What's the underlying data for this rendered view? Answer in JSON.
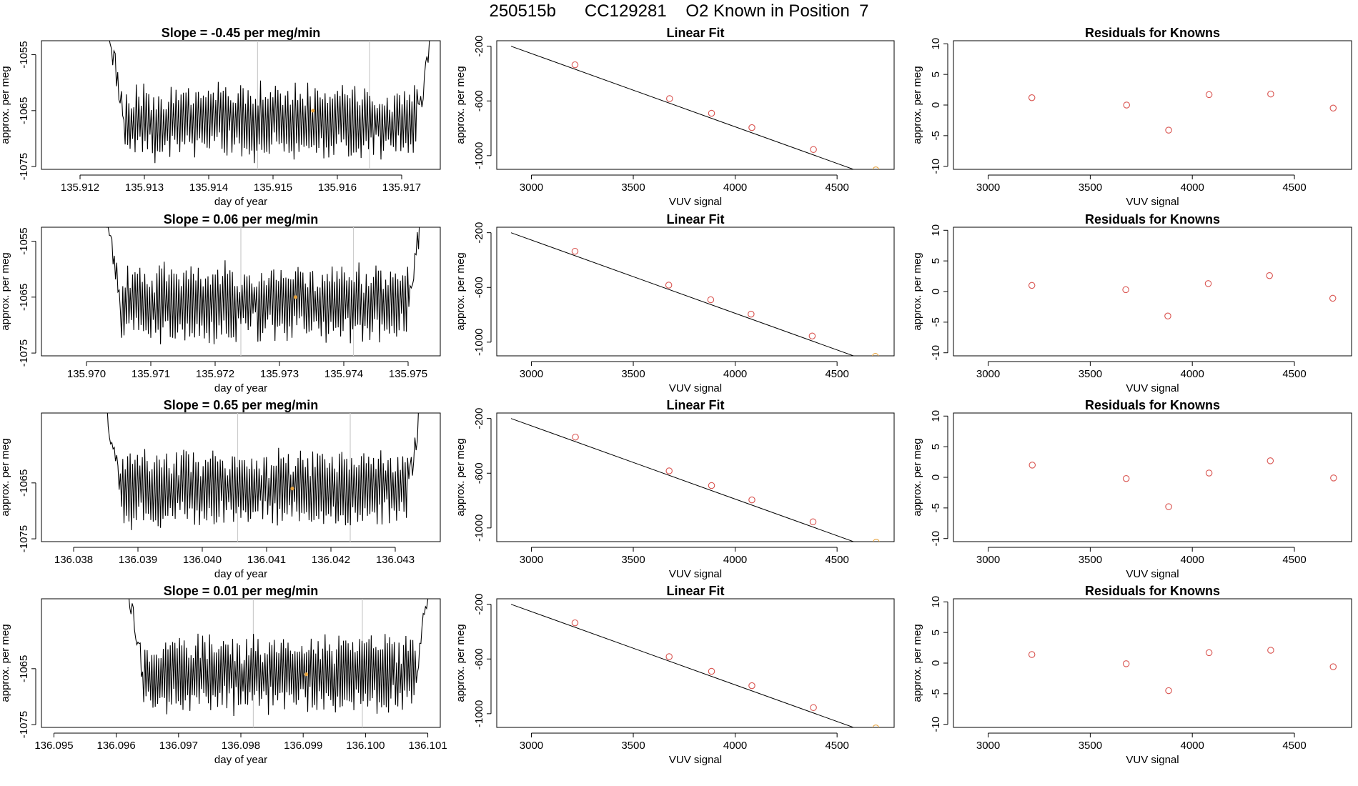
{
  "figure": {
    "title": "250515b      CC129281    O2 Known in Position  7"
  },
  "colors": {
    "trace": "#000000",
    "point": "#d9534f",
    "highlight": "#e8a33d",
    "marker_line": "#cccccc",
    "axis": "#000000"
  },
  "chart_data": [
    {
      "type": "line",
      "row": 0,
      "col": 0,
      "title": "Slope =  -0.45  per meg/min",
      "xlabel": "day of year",
      "ylabel": "approx. per meg",
      "xlim": [
        135.9114,
        135.9176
      ],
      "ylim": [
        -1075.5,
        -1052.5
      ],
      "xticks": [
        135.912,
        135.913,
        135.914,
        135.915,
        135.916,
        135.917
      ],
      "xtick_labels": [
        "135.912",
        "135.913",
        "135.914",
        "135.915",
        "135.916",
        "135.917"
      ],
      "yticks": [
        -1075,
        -1065,
        -1055
      ],
      "ytick_labels": [
        "-1075",
        "-1065",
        "-1055"
      ],
      "trace": {
        "x_start": 135.91245,
        "x_end": 135.91745,
        "n": 260,
        "mean": -1067,
        "amplitude": 5,
        "seed": 11
      },
      "marker_lines": [
        135.91476,
        135.9165
      ],
      "highlight": {
        "x": 135.91562,
        "y": -1065
      }
    },
    {
      "type": "scatter",
      "row": 0,
      "col": 1,
      "title": "Linear Fit",
      "xlabel": "VUV signal",
      "ylabel": "approx. per meg",
      "xlim": [
        2830,
        4780
      ],
      "ylim": [
        -1100,
        -160
      ],
      "xticks": [
        3000,
        3500,
        4000,
        4500
      ],
      "xtick_labels": [
        "3000",
        "3500",
        "4000",
        "4500"
      ],
      "yticks": [
        -1000,
        -600,
        -200
      ],
      "ytick_labels": [
        "-1000",
        "-600",
        "-200"
      ],
      "x": [
        3214,
        3678,
        3884,
        4082,
        4384,
        4690
      ],
      "y": [
        -336,
        -583,
        -690,
        -795,
        -955,
        -1104
      ],
      "fit": {
        "x": [
          2900,
          4730
        ],
        "y": [
          -200,
          -1180
        ]
      },
      "highlight_index": 5
    },
    {
      "type": "scatter",
      "row": 0,
      "col": 2,
      "title": "Residuals for Knowns",
      "xlabel": "VUV signal",
      "ylabel": "approx. per meg",
      "xlim": [
        2830,
        4780
      ],
      "ylim": [
        -10.5,
        10.5
      ],
      "xticks": [
        3000,
        3500,
        4000,
        4500
      ],
      "xtick_labels": [
        "3000",
        "3500",
        "4000",
        "4500"
      ],
      "yticks": [
        -10,
        -5,
        0,
        5,
        10
      ],
      "ytick_labels": [
        "-10",
        "-5",
        "0",
        "5",
        "10"
      ],
      "x": [
        3214,
        3678,
        3884,
        4082,
        4384,
        4690
      ],
      "y": [
        1.2,
        0.0,
        -4.1,
        1.7,
        1.8,
        -0.5
      ]
    },
    {
      "type": "line",
      "row": 1,
      "col": 0,
      "title": "Slope =  0.06  per meg/min",
      "xlabel": "day of year",
      "ylabel": "approx. per meg",
      "xlim": [
        135.9693,
        135.9755
      ],
      "ylim": [
        -1075.5,
        -1052.5
      ],
      "xticks": [
        135.97,
        135.971,
        135.972,
        135.973,
        135.974,
        135.975
      ],
      "xtick_labels": [
        "135.970",
        "135.971",
        "135.972",
        "135.973",
        "135.974",
        "135.975"
      ],
      "yticks": [
        -1075,
        -1065,
        -1055
      ],
      "ytick_labels": [
        "-1075",
        "-1065",
        "-1055"
      ],
      "trace": {
        "x_start": 135.9703,
        "x_end": 135.9752,
        "n": 260,
        "mean": -1066,
        "amplitude": 5,
        "seed": 23
      },
      "marker_lines": [
        135.9724,
        135.97415
      ],
      "highlight": {
        "x": 135.97325,
        "y": -1065
      }
    },
    {
      "type": "scatter",
      "row": 1,
      "col": 1,
      "title": "Linear Fit",
      "xlabel": "VUV signal",
      "ylabel": "approx. per meg",
      "xlim": [
        2830,
        4780
      ],
      "ylim": [
        -1100,
        -160
      ],
      "xticks": [
        3000,
        3500,
        4000,
        4500
      ],
      "xtick_labels": [
        "3000",
        "3500",
        "4000",
        "4500"
      ],
      "yticks": [
        -1000,
        -600,
        -200
      ],
      "ytick_labels": [
        "-1000",
        "-600",
        "-200"
      ],
      "x": [
        3214,
        3674,
        3880,
        4078,
        4378,
        4688
      ],
      "y": [
        -336,
        -583,
        -690,
        -795,
        -955,
        -1104
      ],
      "fit": {
        "x": [
          2900,
          4730
        ],
        "y": [
          -200,
          -1180
        ]
      },
      "highlight_index": 5
    },
    {
      "type": "scatter",
      "row": 1,
      "col": 2,
      "title": "Residuals for Knowns",
      "xlabel": "VUV signal",
      "ylabel": "approx. per meg",
      "xlim": [
        2830,
        4780
      ],
      "ylim": [
        -10.5,
        10.5
      ],
      "xticks": [
        3000,
        3500,
        4000,
        4500
      ],
      "xtick_labels": [
        "3000",
        "3500",
        "4000",
        "4500"
      ],
      "yticks": [
        -10,
        -5,
        0,
        5,
        10
      ],
      "ytick_labels": [
        "-10",
        "-5",
        "0",
        "5",
        "10"
      ],
      "x": [
        3214,
        3674,
        3880,
        4078,
        4378,
        4688
      ],
      "y": [
        1.0,
        0.3,
        -4.0,
        1.3,
        2.6,
        -1.1
      ]
    },
    {
      "type": "line",
      "row": 2,
      "col": 0,
      "title": "Slope =  0.65  per meg/min",
      "xlabel": "day of year",
      "ylabel": "approx. per meg",
      "xlim": [
        136.0375,
        136.0437
      ],
      "ylim": [
        -1075.5,
        -1052.5
      ],
      "xticks": [
        136.038,
        136.039,
        136.04,
        136.041,
        136.042,
        136.043
      ],
      "xtick_labels": [
        "136.038",
        "136.039",
        "136.040",
        "136.041",
        "136.042",
        "136.043"
      ],
      "yticks": [
        -1075,
        -1065
      ],
      "ytick_labels": [
        "-1075",
        "-1065"
      ],
      "trace": {
        "x_start": 136.0385,
        "x_end": 136.0434,
        "n": 260,
        "mean": -1066,
        "amplitude": 5,
        "seed": 37
      },
      "marker_lines": [
        136.04055,
        136.0423
      ],
      "highlight": {
        "x": 136.0414,
        "y": -1066
      }
    },
    {
      "type": "scatter",
      "row": 2,
      "col": 1,
      "title": "Linear Fit",
      "xlabel": "VUV signal",
      "ylabel": "approx. per meg",
      "xlim": [
        2830,
        4780
      ],
      "ylim": [
        -1100,
        -160
      ],
      "xticks": [
        3000,
        3500,
        4000,
        4500
      ],
      "xtick_labels": [
        "3000",
        "3500",
        "4000",
        "4500"
      ],
      "yticks": [
        -1000,
        -600,
        -200
      ],
      "ytick_labels": [
        "-1000",
        "-600",
        "-200"
      ],
      "x": [
        3216,
        3676,
        3884,
        4082,
        4382,
        4692
      ],
      "y": [
        -336,
        -583,
        -690,
        -795,
        -955,
        -1104
      ],
      "fit": {
        "x": [
          2900,
          4730
        ],
        "y": [
          -200,
          -1180
        ]
      },
      "highlight_index": 5
    },
    {
      "type": "scatter",
      "row": 2,
      "col": 2,
      "title": "Residuals for Knowns",
      "xlabel": "VUV signal",
      "ylabel": "approx. per meg",
      "xlim": [
        2830,
        4780
      ],
      "ylim": [
        -10.5,
        10.5
      ],
      "xticks": [
        3000,
        3500,
        4000,
        4500
      ],
      "xtick_labels": [
        "3000",
        "3500",
        "4000",
        "4500"
      ],
      "yticks": [
        -10,
        -5,
        0,
        5,
        10
      ],
      "ytick_labels": [
        "-10",
        "-5",
        "0",
        "5",
        "10"
      ],
      "x": [
        3216,
        3676,
        3884,
        4082,
        4382,
        4692
      ],
      "y": [
        2.0,
        -0.2,
        -4.8,
        0.7,
        2.7,
        -0.1
      ]
    },
    {
      "type": "line",
      "row": 3,
      "col": 0,
      "title": "Slope =  0.01  per meg/min",
      "xlabel": "day of year",
      "ylabel": "approx. per meg",
      "xlim": [
        136.0948,
        136.1012
      ],
      "ylim": [
        -1075.5,
        -1052.5
      ],
      "xticks": [
        136.095,
        136.096,
        136.097,
        136.098,
        136.099,
        136.1,
        136.101
      ],
      "xtick_labels": [
        "136.095",
        "136.096",
        "136.097",
        "136.098",
        "136.099",
        "136.100",
        "136.101"
      ],
      "yticks": [
        -1075,
        -1065
      ],
      "ytick_labels": [
        "-1075",
        "-1065"
      ],
      "trace": {
        "x_start": 136.0962,
        "x_end": 136.101,
        "n": 260,
        "mean": -1066,
        "amplitude": 5,
        "seed": 53
      },
      "marker_lines": [
        136.0982,
        136.09995
      ],
      "highlight": {
        "x": 136.09905,
        "y": -1066
      }
    },
    {
      "type": "scatter",
      "row": 3,
      "col": 1,
      "title": "Linear Fit",
      "xlabel": "VUV signal",
      "ylabel": "approx. per meg",
      "xlim": [
        2830,
        4780
      ],
      "ylim": [
        -1100,
        -160
      ],
      "xticks": [
        3000,
        3500,
        4000,
        4500
      ],
      "xtick_labels": [
        "3000",
        "3500",
        "4000",
        "4500"
      ],
      "yticks": [
        -1000,
        -600,
        -200
      ],
      "ytick_labels": [
        "-1000",
        "-600",
        "-200"
      ],
      "x": [
        3214,
        3676,
        3884,
        4082,
        4384,
        4690
      ],
      "y": [
        -336,
        -583,
        -690,
        -795,
        -955,
        -1104
      ],
      "fit": {
        "x": [
          2900,
          4730
        ],
        "y": [
          -200,
          -1180
        ]
      },
      "highlight_index": 5
    },
    {
      "type": "scatter",
      "row": 3,
      "col": 2,
      "title": "Residuals for Knowns",
      "xlabel": "VUV signal",
      "ylabel": "approx. per meg",
      "xlim": [
        2830,
        4780
      ],
      "ylim": [
        -10.5,
        10.5
      ],
      "xticks": [
        3000,
        3500,
        4000,
        4500
      ],
      "xtick_labels": [
        "3000",
        "3500",
        "4000",
        "4500"
      ],
      "yticks": [
        -10,
        -5,
        0,
        5,
        10
      ],
      "ytick_labels": [
        "-10",
        "-5",
        "0",
        "5",
        "10"
      ],
      "x": [
        3214,
        3676,
        3884,
        4082,
        4384,
        4690
      ],
      "y": [
        1.4,
        -0.1,
        -4.5,
        1.7,
        2.1,
        -0.6
      ]
    }
  ]
}
